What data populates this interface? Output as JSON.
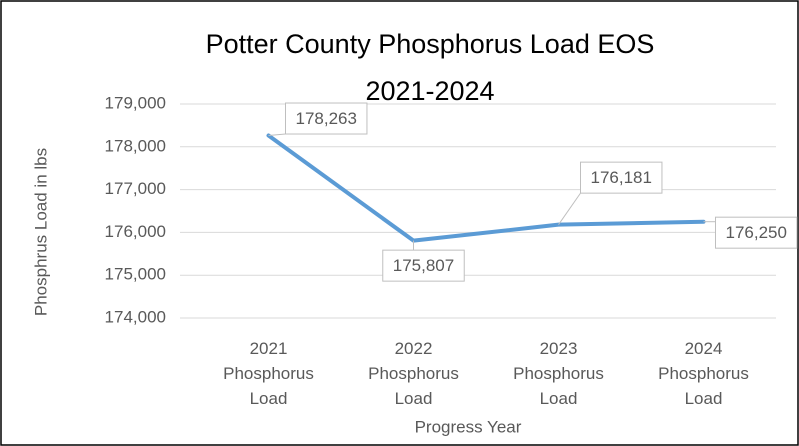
{
  "chart_data": {
    "type": "line",
    "title": "Potter County Phosphorus Load EOS 2021-2024",
    "x_label": "Progress Year",
    "y_label": "Phosphrus Load in lbs",
    "categories": [
      "2021 Phosphorus Load",
      "2022 Phosphorus Load",
      "2023 Phosphorus Load",
      "2024 Phosphorus Load"
    ],
    "series": [
      {
        "name": "Phosphorus Load",
        "color": "#5b9bd5",
        "values": [
          178263,
          175807,
          176181,
          176250
        ],
        "value_labels": [
          "178,263",
          "175,807",
          "176,181",
          "176,250"
        ]
      }
    ],
    "ylim": [
      174000,
      179000
    ],
    "yticks": [
      {
        "value": 174000,
        "label": "174,000"
      },
      {
        "value": 175000,
        "label": "175,000"
      },
      {
        "value": 176000,
        "label": "176,000"
      },
      {
        "value": 177000,
        "label": "177,000"
      },
      {
        "value": 178000,
        "label": "178,000"
      },
      {
        "value": 179000,
        "label": "179,000"
      }
    ],
    "grid": true
  }
}
